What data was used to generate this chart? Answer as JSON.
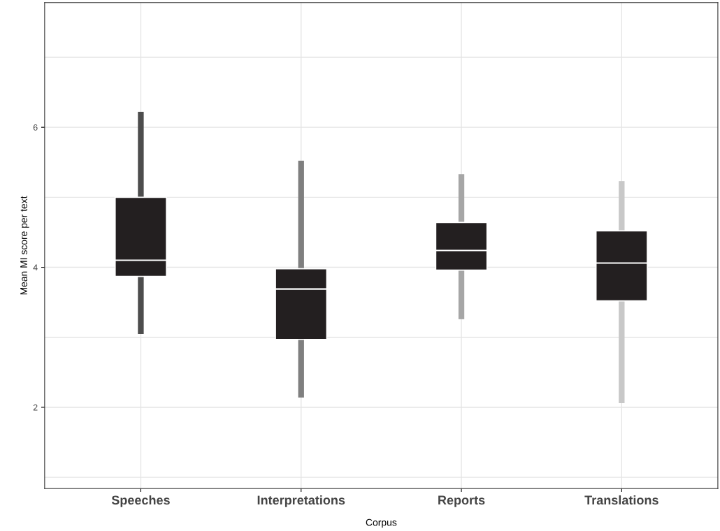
{
  "chart_data": {
    "type": "box",
    "xlabel": "Corpus",
    "ylabel": "Mean MI score per text",
    "categories": [
      "Speeches",
      "Interpretations",
      "Reports",
      "Translations"
    ],
    "colors": [
      "#4d4d4d",
      "#7f7f7f",
      "#a6a6a6",
      "#c8c8c8"
    ],
    "series": [
      {
        "color": "#231f20",
        "boxes": [
          {
            "low": 3.09,
            "q1": 3.87,
            "median": 4.1,
            "q3": 5.0,
            "high": 6.18
          },
          {
            "low": 2.18,
            "q1": 2.97,
            "median": 3.69,
            "q3": 3.98,
            "high": 5.48
          },
          {
            "low": 3.3,
            "q1": 3.96,
            "median": 4.24,
            "q3": 4.64,
            "high": 5.29
          },
          {
            "low": 2.1,
            "q1": 3.52,
            "median": 4.06,
            "q3": 4.52,
            "high": 5.19
          }
        ]
      }
    ],
    "ylim": [
      0.84,
      7.78
    ],
    "yticks": [
      {
        "value": 1,
        "label": null
      },
      2,
      {
        "value": 3,
        "label": null
      },
      4,
      {
        "value": 5,
        "label": null
      },
      6,
      {
        "value": 7,
        "label": null
      }
    ],
    "grid": true
  }
}
